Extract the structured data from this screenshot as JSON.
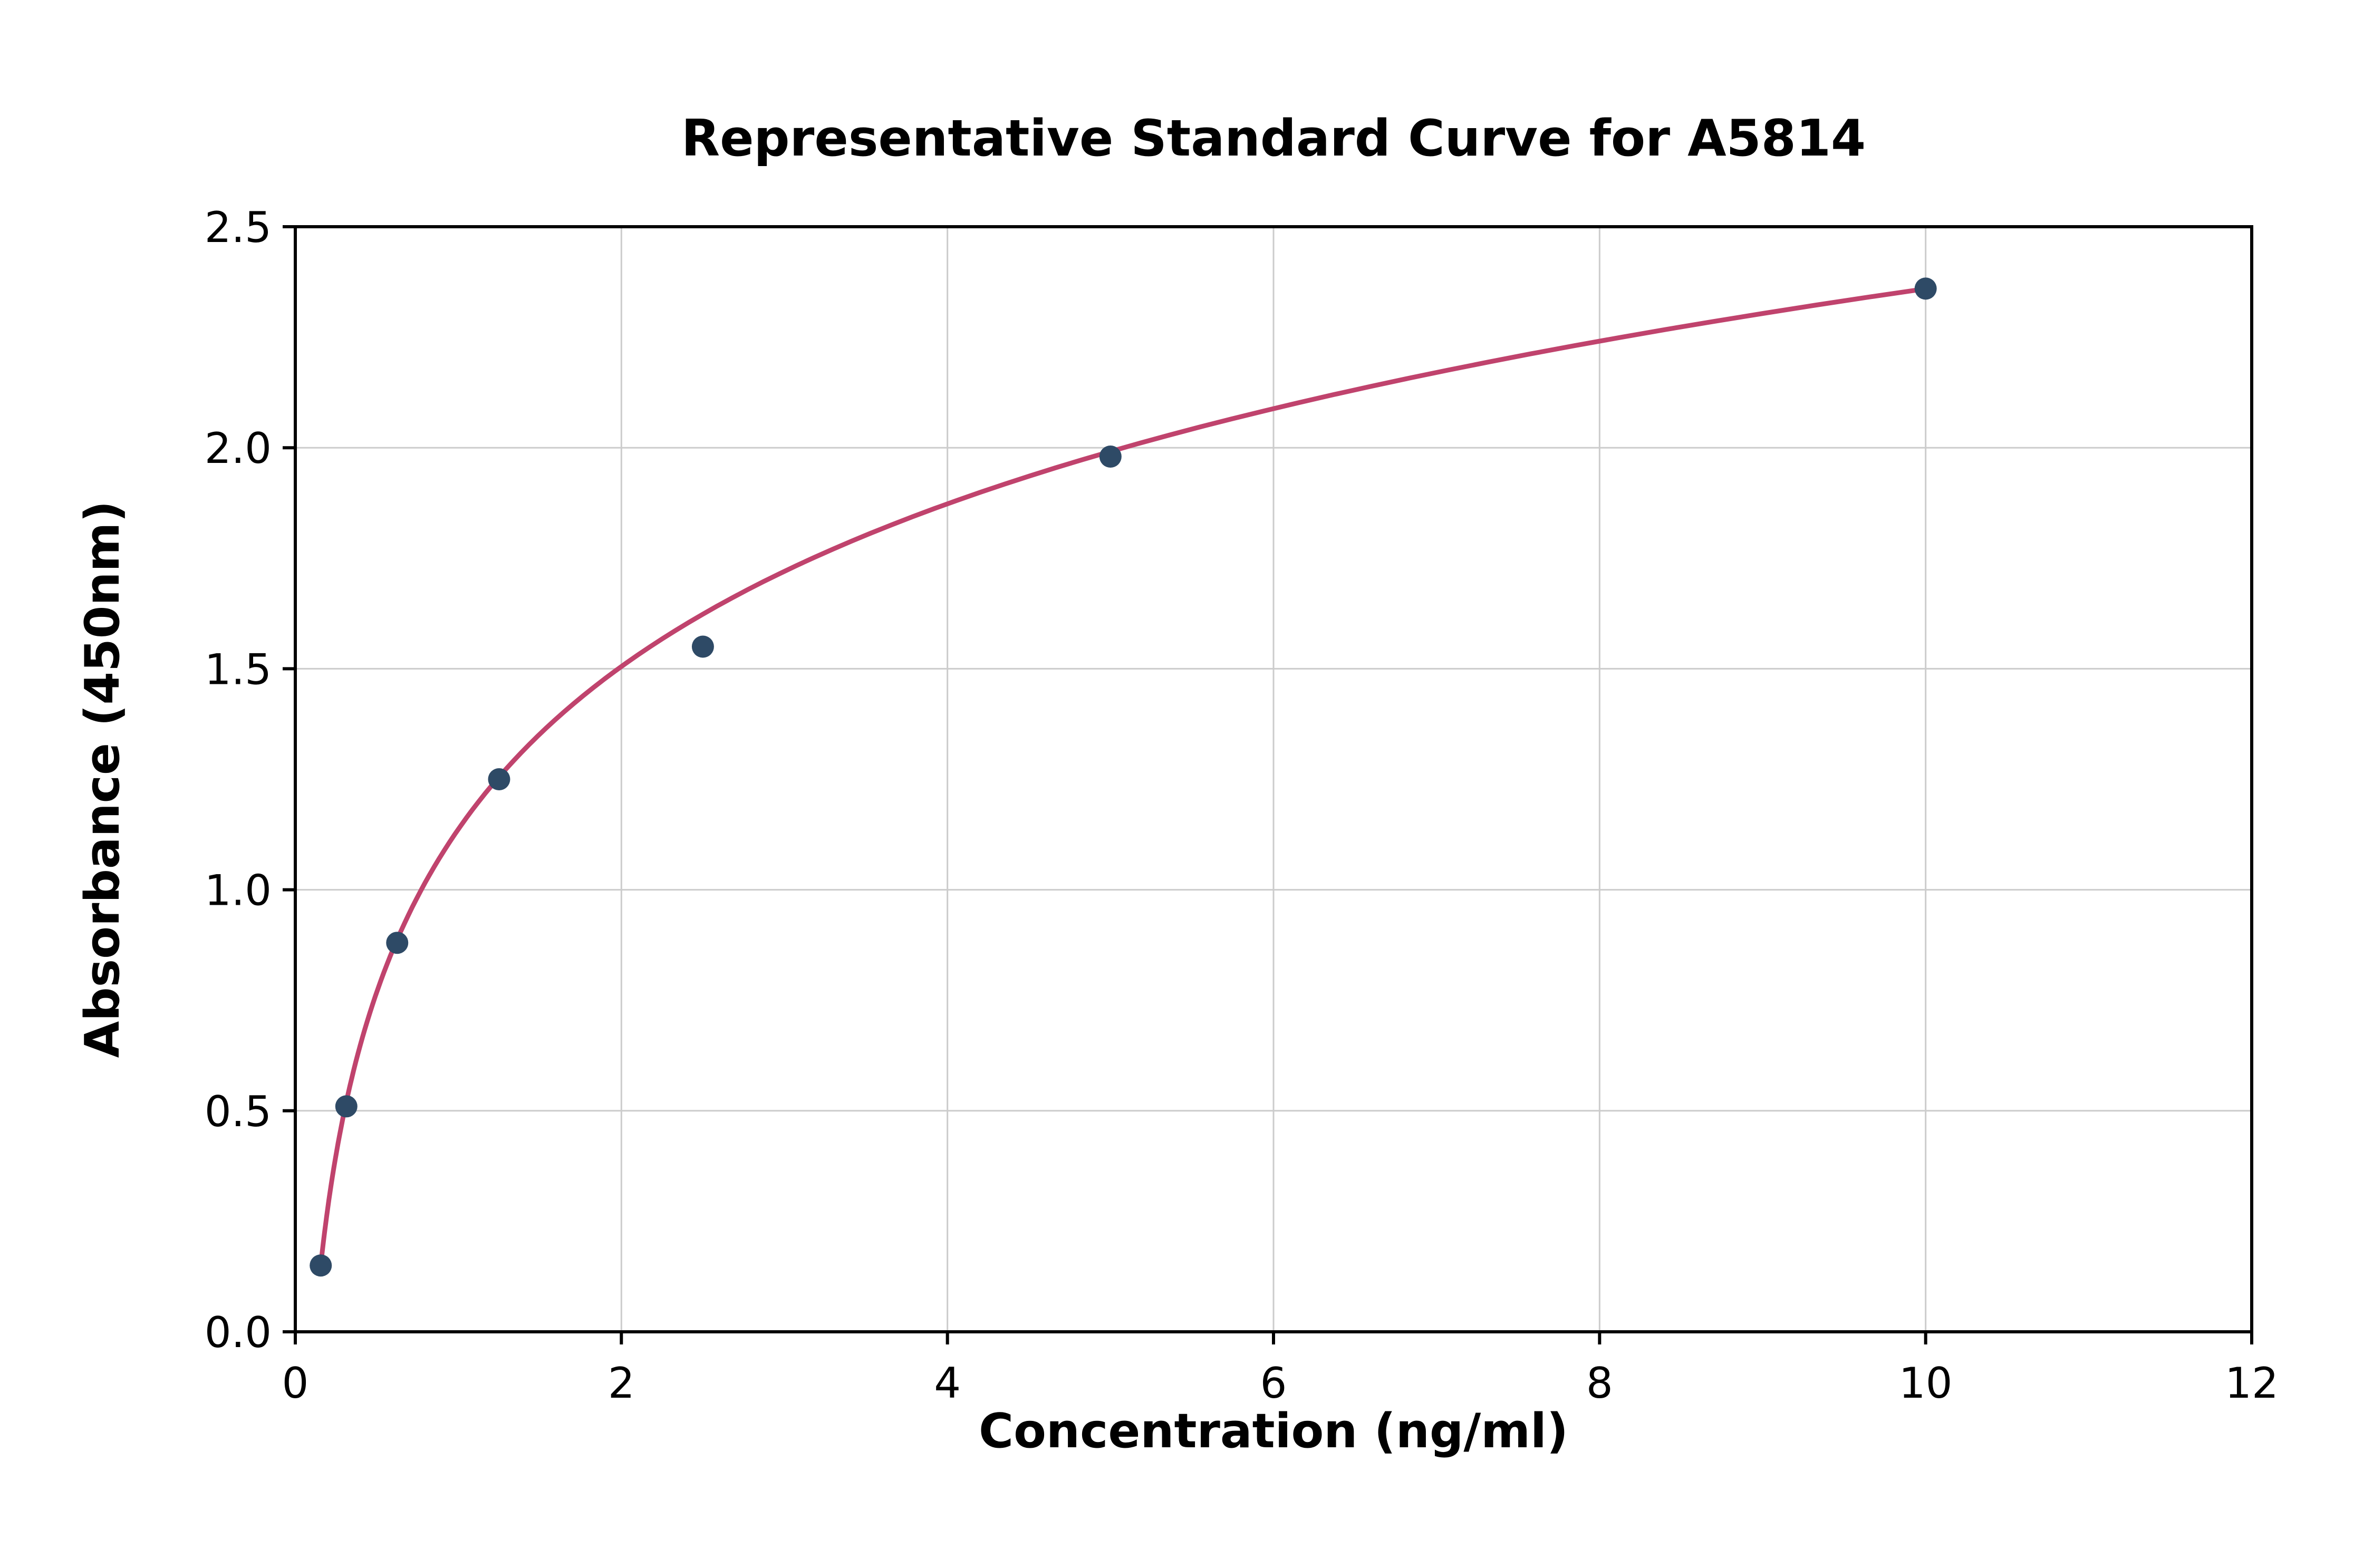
{
  "chart_data": {
    "type": "scatter",
    "title": "Representative Standard Curve for A5814",
    "xlabel": "Concentration (ng/ml)",
    "ylabel": "Absorbance (450nm)",
    "xlim": [
      0,
      12
    ],
    "ylim": [
      0,
      2.5
    ],
    "x_ticks": [
      0,
      2,
      4,
      6,
      8,
      10,
      12
    ],
    "x_tick_labels": [
      "0",
      "2",
      "4",
      "6",
      "8",
      "10",
      "12"
    ],
    "y_ticks": [
      0.0,
      0.5,
      1.0,
      1.5,
      2.0,
      2.5
    ],
    "y_tick_labels": [
      "0.0",
      "0.5",
      "1.0",
      "1.5",
      "2.0",
      "2.5"
    ],
    "grid": true,
    "legend": "none",
    "points": [
      {
        "x": 0.156,
        "y": 0.15
      },
      {
        "x": 0.313,
        "y": 0.51
      },
      {
        "x": 0.625,
        "y": 0.88
      },
      {
        "x": 1.25,
        "y": 1.25
      },
      {
        "x": 2.5,
        "y": 1.55
      },
      {
        "x": 5.0,
        "y": 1.98
      },
      {
        "x": 10.0,
        "y": 2.36
      }
    ],
    "fit_curve": {
      "model": "y = a + b*ln(x)",
      "a": 1.137,
      "b": 0.531,
      "x_start": 0.156,
      "x_end": 10.0
    },
    "colors": {
      "point": "#2e4a66",
      "curve": "#c0436d",
      "grid": "#cccccc",
      "axis": "#000000",
      "background": "#ffffff"
    }
  }
}
